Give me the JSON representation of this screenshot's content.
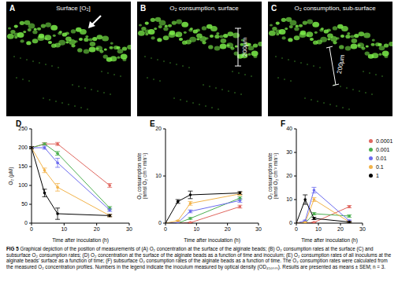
{
  "images": [
    {
      "letter": "A",
      "title": "Surface [O₂]"
    },
    {
      "letter": "B",
      "title": "O₂ consumption, surface",
      "scale_bar": "200µm"
    },
    {
      "letter": "C",
      "title": "O₂ consumption, sub-surface",
      "scale_bar": "200µm"
    }
  ],
  "chart_data": [
    {
      "type": "line",
      "panel": "D",
      "x_label": "Time after inoculation (h)",
      "y_label": [
        "O₂ (µM)"
      ],
      "x": [
        0,
        4,
        8,
        24
      ],
      "xlim": [
        0,
        30
      ],
      "xticks": [
        0,
        10,
        20,
        30
      ],
      "ylim": [
        0,
        250
      ],
      "yticks": [
        0,
        50,
        100,
        150,
        200,
        250
      ],
      "grid": false,
      "marker": "circle",
      "series": [
        {
          "name": "0.0001",
          "color": "#e0675f",
          "values": [
            200,
            210,
            210,
            100
          ],
          "errors": [
            3,
            3,
            4,
            5
          ]
        },
        {
          "name": "0.001",
          "color": "#4caf50",
          "values": [
            200,
            210,
            185,
            40
          ],
          "errors": [
            3,
            3,
            5,
            4
          ]
        },
        {
          "name": "0.01",
          "color": "#6b6bef",
          "values": [
            200,
            200,
            160,
            35
          ],
          "errors": [
            3,
            4,
            12,
            4
          ]
        },
        {
          "name": "0.1",
          "color": "#f2b34a",
          "values": [
            200,
            140,
            95,
            20
          ],
          "errors": [
            3,
            6,
            10,
            3
          ]
        },
        {
          "name": "1",
          "color": "#000000",
          "values": [
            200,
            80,
            25,
            20
          ],
          "errors": [
            3,
            10,
            15,
            3
          ]
        }
      ]
    },
    {
      "type": "line",
      "panel": "E",
      "x_label": "Time after inoculation (h)",
      "y_label": [
        "O₂ consumption rate",
        "(nmol O₂ cm⁻² min⁻¹)"
      ],
      "x": [
        0,
        4,
        8,
        24
      ],
      "xlim": [
        0,
        30
      ],
      "xticks": [
        0,
        10,
        20,
        30
      ],
      "ylim": [
        0,
        20
      ],
      "yticks": [
        0,
        10,
        20
      ],
      "grid": false,
      "marker": "circle",
      "series": [
        {
          "name": "0.0001",
          "color": "#e0675f",
          "values": [
            0,
            0,
            0.1,
            3.5
          ],
          "errors": [
            0,
            0,
            0.1,
            0.3
          ]
        },
        {
          "name": "0.001",
          "color": "#4caf50",
          "values": [
            0,
            0,
            1,
            5.3
          ],
          "errors": [
            0,
            0,
            0.2,
            0.3
          ]
        },
        {
          "name": "0.01",
          "color": "#6b6bef",
          "values": [
            0,
            0.1,
            2.5,
            4.8
          ],
          "errors": [
            0,
            0,
            0.3,
            0.4
          ]
        },
        {
          "name": "0.1",
          "color": "#f2b34a",
          "values": [
            0,
            0.5,
            4.2,
            6.2
          ],
          "errors": [
            0,
            0.1,
            0.4,
            0.3
          ]
        },
        {
          "name": "1",
          "color": "#000000",
          "values": [
            0,
            4.6,
            6,
            6.4
          ],
          "errors": [
            0,
            0.4,
            0.8,
            0.3
          ]
        }
      ]
    },
    {
      "type": "line",
      "panel": "F",
      "x_label": "Time after inoculation (h)",
      "y_label": [
        "O₂ consumption rate",
        "(nmol O₂ cm⁻² min⁻¹)"
      ],
      "x": [
        0,
        4,
        8,
        24
      ],
      "xlim": [
        0,
        30
      ],
      "xticks": [
        0,
        10,
        20,
        30
      ],
      "ylim": [
        0,
        40
      ],
      "yticks": [
        0,
        10,
        20,
        30,
        40
      ],
      "grid": false,
      "marker": "circle",
      "legend": "right",
      "series": [
        {
          "name": "0.0001",
          "color": "#e0675f",
          "values": [
            0,
            0,
            0.3,
            7
          ],
          "errors": [
            0,
            0,
            0.2,
            0.5
          ]
        },
        {
          "name": "0.001",
          "color": "#4caf50",
          "values": [
            0,
            0,
            4,
            3
          ],
          "errors": [
            0,
            0,
            0.5,
            0.5
          ]
        },
        {
          "name": "0.01",
          "color": "#6b6bef",
          "values": [
            0,
            1,
            14,
            1
          ],
          "errors": [
            0,
            0.3,
            1.2,
            0.3
          ]
        },
        {
          "name": "0.1",
          "color": "#f2b34a",
          "values": [
            0,
            0.3,
            10,
            0.5
          ],
          "errors": [
            0,
            0.2,
            0.8,
            0.2
          ]
        },
        {
          "name": "1",
          "color": "#000000",
          "values": [
            0,
            10,
            2,
            0.5
          ],
          "errors": [
            0,
            2,
            0.5,
            0.2
          ]
        }
      ]
    }
  ],
  "caption": {
    "label": "FIG 5",
    "text": "Graphical depiction of the position of measurements of (A) O₂ concentration at the surface of the alginate beads; (B) O₂ consumption rates at the surface (C) and subsurface O₂ consumption rates; (D) O₂ concentration at the surface of the alginate beads as a function of time and inoculum; (E) O₂ consumption rates of all inoculums at the alginate beads' surface as a function of time; (F) subsurface O₂ consumption rates of the alginate beads as a function of time. The O₂ consumption rates were calculated from the measured O₂ concentration profiles. Numbers in the legend indicate the inoculum measured by optical density (OD₄₅₀ₙₘ). Results are presented as means ± SEM; n = 3."
  }
}
